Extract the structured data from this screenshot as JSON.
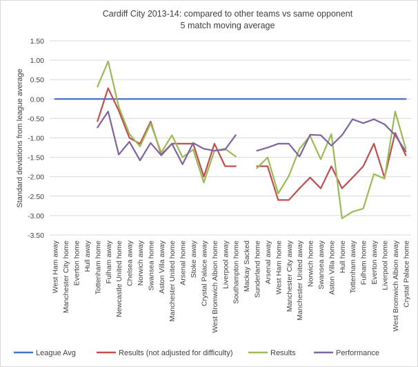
{
  "chart_data": {
    "type": "line",
    "title": "Cardiff City 2013-14: compared to other teams vs same opponent",
    "subtitle": "5 match moving average",
    "ylabel": "Standard deviations from league average",
    "xlabel": "",
    "ylim": [
      -3.5,
      1.5
    ],
    "ytick_step": 0.5,
    "yticks": [
      "1.50",
      "1.00",
      "0.50",
      "0.00",
      "-0.50",
      "-1.00",
      "-1.50",
      "-2.00",
      "-2.50",
      "-3.00",
      "-3.50"
    ],
    "grid": true,
    "legend_position": "bottom",
    "categories": [
      "West Ham away",
      "Manchester City home",
      "Everton home",
      "Hull away",
      "Tottenham home",
      "Fulham away",
      "Newcastle United home",
      "Chelsea away",
      "Norwich away",
      "Swansea home",
      "Aston Villa away",
      "Manchester United home",
      "Arsenal home",
      "Stoke away",
      "Crystal Palace away",
      "West Bromwich Albion home",
      "Liverpool away",
      "Southampton home",
      "Mackay Sacked",
      "Sunderland home",
      "Arsenal away",
      "West Ham home",
      "Manchester City away",
      "Manchester United away",
      "Norwich home",
      "Swansea away",
      "Aston Villa home",
      "Hull home",
      "Tottenham away",
      "Fulham home",
      "Everton away",
      "Liverpool home",
      "West Bromwich Albion away",
      "Crystal Palace home"
    ],
    "series": [
      {
        "name": "League Avg",
        "color": "#4472C4",
        "values": [
          0,
          0,
          0,
          0,
          0,
          0,
          0,
          0,
          0,
          0,
          0,
          0,
          0,
          0,
          0,
          0,
          0,
          0,
          0,
          0,
          0,
          0,
          0,
          0,
          0,
          0,
          0,
          0,
          0,
          0,
          0,
          0,
          0,
          0
        ]
      },
      {
        "name": "Results (not adjusted for difficulty)",
        "color": "#C0504D",
        "values": [
          null,
          null,
          null,
          null,
          -0.57,
          0.28,
          -0.3,
          -1.0,
          -1.15,
          -0.58,
          -1.43,
          -1.15,
          -1.15,
          -1.15,
          -2.0,
          -1.15,
          -1.73,
          -1.73,
          null,
          -1.73,
          -1.73,
          -2.6,
          -2.6,
          -2.3,
          -2.02,
          -2.3,
          -1.73,
          -2.3,
          -2.02,
          -1.73,
          -1.15,
          -2.02,
          -0.87,
          -1.45
        ]
      },
      {
        "name": "Results",
        "color": "#9BBB59",
        "values": [
          null,
          null,
          null,
          null,
          0.32,
          0.97,
          -0.2,
          -0.9,
          -1.22,
          -0.63,
          -1.38,
          -0.93,
          -1.5,
          -1.3,
          -2.15,
          -1.33,
          -1.28,
          -1.48,
          null,
          -1.78,
          -1.5,
          -2.43,
          -1.98,
          -1.28,
          -0.95,
          -1.55,
          -0.9,
          -3.07,
          -2.9,
          -2.82,
          -1.93,
          -2.05,
          -0.32,
          -1.28
        ]
      },
      {
        "name": "Performance",
        "color": "#8064A2",
        "values": [
          null,
          null,
          null,
          null,
          -0.73,
          -0.32,
          -1.43,
          -1.1,
          -1.58,
          -1.13,
          -1.45,
          -1.15,
          -1.68,
          -1.13,
          -1.28,
          -1.33,
          -1.3,
          -0.93,
          null,
          -1.33,
          -1.25,
          -1.15,
          -1.15,
          -1.48,
          -0.92,
          -0.93,
          -1.2,
          -0.93,
          -0.52,
          -0.62,
          -0.52,
          -0.65,
          -0.93,
          -1.35
        ]
      }
    ]
  }
}
